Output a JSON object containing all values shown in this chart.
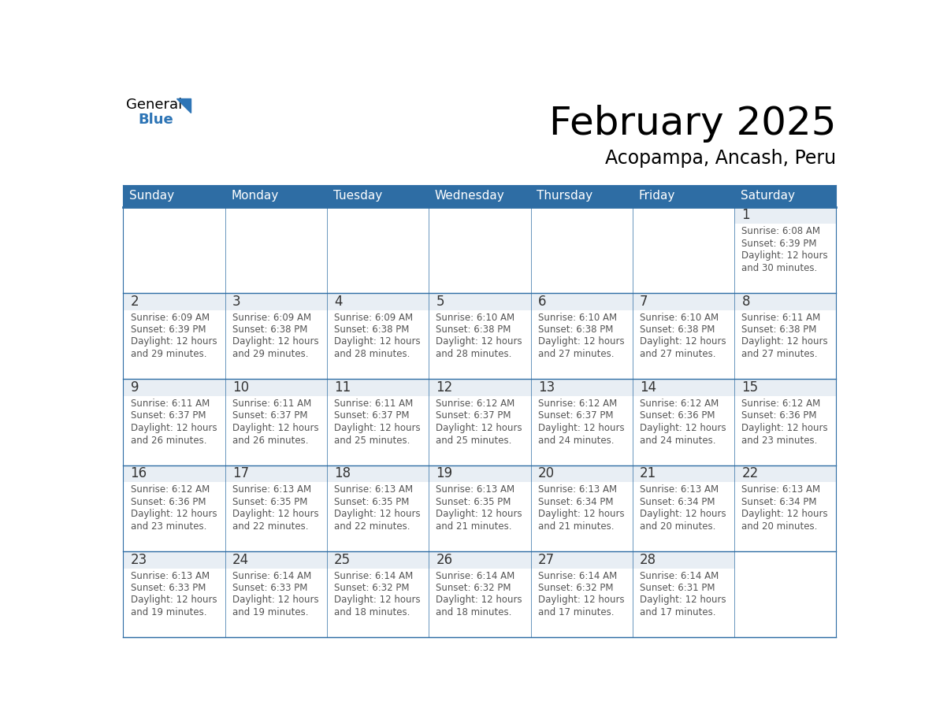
{
  "title": "February 2025",
  "subtitle": "Acopampa, Ancash, Peru",
  "header_bg_color": "#2e6da4",
  "header_text_color": "#ffffff",
  "cell_top_bg": "#e8eef4",
  "cell_main_bg": "#ffffff",
  "border_color": "#2e6da4",
  "row_border_color": "#2e6da4",
  "day_number_color": "#333333",
  "text_color": "#555555",
  "days_of_week": [
    "Sunday",
    "Monday",
    "Tuesday",
    "Wednesday",
    "Thursday",
    "Friday",
    "Saturday"
  ],
  "calendar_data": [
    [
      null,
      null,
      null,
      null,
      null,
      null,
      {
        "day": 1,
        "sunrise": "6:08 AM",
        "sunset": "6:39 PM",
        "daylight": "12 hours\nand 30 minutes."
      }
    ],
    [
      {
        "day": 2,
        "sunrise": "6:09 AM",
        "sunset": "6:39 PM",
        "daylight": "12 hours\nand 29 minutes."
      },
      {
        "day": 3,
        "sunrise": "6:09 AM",
        "sunset": "6:38 PM",
        "daylight": "12 hours\nand 29 minutes."
      },
      {
        "day": 4,
        "sunrise": "6:09 AM",
        "sunset": "6:38 PM",
        "daylight": "12 hours\nand 28 minutes."
      },
      {
        "day": 5,
        "sunrise": "6:10 AM",
        "sunset": "6:38 PM",
        "daylight": "12 hours\nand 28 minutes."
      },
      {
        "day": 6,
        "sunrise": "6:10 AM",
        "sunset": "6:38 PM",
        "daylight": "12 hours\nand 27 minutes."
      },
      {
        "day": 7,
        "sunrise": "6:10 AM",
        "sunset": "6:38 PM",
        "daylight": "12 hours\nand 27 minutes."
      },
      {
        "day": 8,
        "sunrise": "6:11 AM",
        "sunset": "6:38 PM",
        "daylight": "12 hours\nand 27 minutes."
      }
    ],
    [
      {
        "day": 9,
        "sunrise": "6:11 AM",
        "sunset": "6:37 PM",
        "daylight": "12 hours\nand 26 minutes."
      },
      {
        "day": 10,
        "sunrise": "6:11 AM",
        "sunset": "6:37 PM",
        "daylight": "12 hours\nand 26 minutes."
      },
      {
        "day": 11,
        "sunrise": "6:11 AM",
        "sunset": "6:37 PM",
        "daylight": "12 hours\nand 25 minutes."
      },
      {
        "day": 12,
        "sunrise": "6:12 AM",
        "sunset": "6:37 PM",
        "daylight": "12 hours\nand 25 minutes."
      },
      {
        "day": 13,
        "sunrise": "6:12 AM",
        "sunset": "6:37 PM",
        "daylight": "12 hours\nand 24 minutes."
      },
      {
        "day": 14,
        "sunrise": "6:12 AM",
        "sunset": "6:36 PM",
        "daylight": "12 hours\nand 24 minutes."
      },
      {
        "day": 15,
        "sunrise": "6:12 AM",
        "sunset": "6:36 PM",
        "daylight": "12 hours\nand 23 minutes."
      }
    ],
    [
      {
        "day": 16,
        "sunrise": "6:12 AM",
        "sunset": "6:36 PM",
        "daylight": "12 hours\nand 23 minutes."
      },
      {
        "day": 17,
        "sunrise": "6:13 AM",
        "sunset": "6:35 PM",
        "daylight": "12 hours\nand 22 minutes."
      },
      {
        "day": 18,
        "sunrise": "6:13 AM",
        "sunset": "6:35 PM",
        "daylight": "12 hours\nand 22 minutes."
      },
      {
        "day": 19,
        "sunrise": "6:13 AM",
        "sunset": "6:35 PM",
        "daylight": "12 hours\nand 21 minutes."
      },
      {
        "day": 20,
        "sunrise": "6:13 AM",
        "sunset": "6:34 PM",
        "daylight": "12 hours\nand 21 minutes."
      },
      {
        "day": 21,
        "sunrise": "6:13 AM",
        "sunset": "6:34 PM",
        "daylight": "12 hours\nand 20 minutes."
      },
      {
        "day": 22,
        "sunrise": "6:13 AM",
        "sunset": "6:34 PM",
        "daylight": "12 hours\nand 20 minutes."
      }
    ],
    [
      {
        "day": 23,
        "sunrise": "6:13 AM",
        "sunset": "6:33 PM",
        "daylight": "12 hours\nand 19 minutes."
      },
      {
        "day": 24,
        "sunrise": "6:14 AM",
        "sunset": "6:33 PM",
        "daylight": "12 hours\nand 19 minutes."
      },
      {
        "day": 25,
        "sunrise": "6:14 AM",
        "sunset": "6:32 PM",
        "daylight": "12 hours\nand 18 minutes."
      },
      {
        "day": 26,
        "sunrise": "6:14 AM",
        "sunset": "6:32 PM",
        "daylight": "12 hours\nand 18 minutes."
      },
      {
        "day": 27,
        "sunrise": "6:14 AM",
        "sunset": "6:32 PM",
        "daylight": "12 hours\nand 17 minutes."
      },
      {
        "day": 28,
        "sunrise": "6:14 AM",
        "sunset": "6:31 PM",
        "daylight": "12 hours\nand 17 minutes."
      },
      null
    ]
  ],
  "logo_triangle_color": "#2e75b6",
  "title_fontsize": 36,
  "subtitle_fontsize": 17,
  "dow_fontsize": 11,
  "day_num_fontsize": 12,
  "cell_text_fontsize": 8.5
}
